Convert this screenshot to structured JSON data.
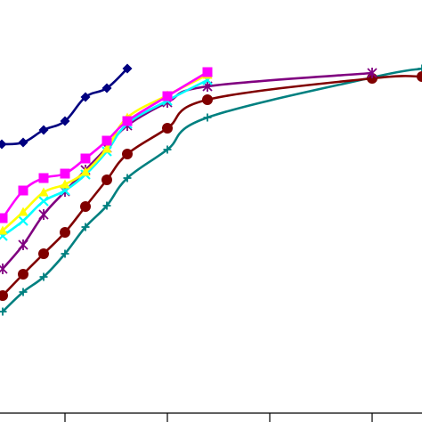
{
  "chart_data": {
    "type": "line",
    "title": "",
    "xlabel": "",
    "ylabel": "",
    "xlim": [
      0,
      474
    ],
    "ylim": [
      0,
      474
    ],
    "x_ticks": [
      73,
      188,
      303,
      418
    ],
    "grid": false,
    "legend": "none",
    "series": [
      {
        "color": "#000080",
        "marker": "diamond",
        "points": [
          [
            2,
            312
          ],
          [
            26,
            314
          ],
          [
            49,
            328
          ],
          [
            73,
            338
          ],
          [
            96,
            365
          ],
          [
            120,
            375
          ],
          [
            143,
            397
          ]
        ]
      },
      {
        "color": "#FF00FF",
        "marker": "square",
        "points": [
          [
            3,
            229
          ],
          [
            26,
            260
          ],
          [
            49,
            274
          ],
          [
            73,
            279
          ],
          [
            96,
            296
          ],
          [
            120,
            316
          ],
          [
            143,
            338
          ],
          [
            188,
            366
          ],
          [
            233,
            393
          ]
        ]
      },
      {
        "color": "#FFFF00",
        "marker": "triangle",
        "points": [
          [
            3,
            215
          ],
          [
            26,
            236
          ],
          [
            49,
            258
          ],
          [
            73,
            267
          ],
          [
            96,
            281
          ],
          [
            120,
            307
          ],
          [
            143,
            342
          ],
          [
            188,
            367
          ],
          [
            233,
            390
          ]
        ]
      },
      {
        "color": "#00FFFF",
        "marker": "x",
        "points": [
          [
            3,
            209
          ],
          [
            26,
            226
          ],
          [
            49,
            248
          ],
          [
            73,
            260
          ],
          [
            96,
            278
          ],
          [
            120,
            304
          ],
          [
            143,
            335
          ],
          [
            188,
            361
          ],
          [
            233,
            384
          ]
        ]
      },
      {
        "color": "#800080",
        "marker": "star",
        "points": [
          [
            3,
            172
          ],
          [
            26,
            199
          ],
          [
            49,
            233
          ],
          [
            73,
            259
          ],
          [
            96,
            283
          ],
          [
            120,
            308
          ],
          [
            143,
            333
          ],
          [
            188,
            359
          ],
          [
            233,
            377
          ],
          [
            418,
            392
          ]
        ]
      },
      {
        "color": "#800000",
        "marker": "circle",
        "points": [
          [
            3,
            142
          ],
          [
            26,
            166
          ],
          [
            49,
            189
          ],
          [
            73,
            213
          ],
          [
            96,
            242
          ],
          [
            120,
            272
          ],
          [
            143,
            301
          ],
          [
            188,
            330
          ],
          [
            233,
            362
          ],
          [
            418,
            386
          ],
          [
            474,
            388
          ]
        ]
      },
      {
        "color": "#008080",
        "marker": "plus",
        "points": [
          [
            3,
            124
          ],
          [
            26,
            146
          ],
          [
            49,
            163
          ],
          [
            73,
            189
          ],
          [
            96,
            219
          ],
          [
            120,
            243
          ],
          [
            143,
            274
          ],
          [
            188,
            306
          ],
          [
            233,
            342
          ],
          [
            418,
            387
          ],
          [
            474,
            397
          ]
        ]
      }
    ]
  }
}
